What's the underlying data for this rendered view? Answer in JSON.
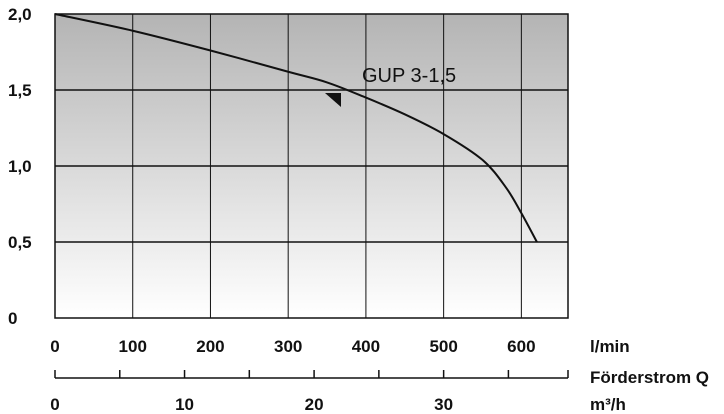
{
  "chart_data": {
    "type": "line",
    "series": [
      {
        "name": "GUP 3-1,5",
        "x": [
          0,
          100,
          200,
          300,
          350,
          400,
          450,
          500,
          550,
          580,
          600,
          620
        ],
        "y": [
          2.0,
          1.89,
          1.76,
          1.62,
          1.55,
          1.45,
          1.34,
          1.21,
          1.04,
          0.86,
          0.69,
          0.5
        ]
      }
    ],
    "xlim": [
      0,
      660
    ],
    "ylim": [
      0,
      2.0
    ],
    "y_ticks": [
      "0",
      "0,5",
      "1,0",
      "1,5",
      "2,0"
    ],
    "y_tick_values": [
      0,
      0.5,
      1.0,
      1.5,
      2.0
    ],
    "x_ticks": [
      "0",
      "100",
      "200",
      "300",
      "400",
      "500",
      "600"
    ],
    "x_tick_values": [
      0,
      100,
      200,
      300,
      400,
      500,
      600
    ],
    "x_unit": "l/min",
    "secondary_axis": {
      "label": "Förderstrom Q",
      "unit": "m³/h",
      "ticks": [
        "0",
        "10",
        "20",
        "30"
      ],
      "tick_values": [
        0,
        10,
        20,
        30
      ],
      "xlim": [
        0,
        39.6
      ]
    },
    "grid": true,
    "background": "gradient-gray-to-white",
    "colors": {
      "line": "#111111",
      "grid": "#111111",
      "bg_top": "#b8b8b8",
      "bg_bottom": "#ffffff"
    }
  }
}
